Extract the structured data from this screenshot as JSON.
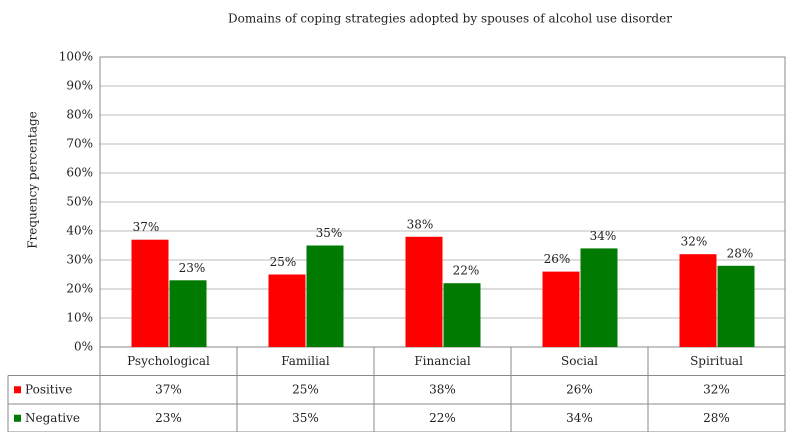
{
  "chart_data": {
    "type": "bar",
    "title": "Domains of coping strategies adopted by spouses of alcohol use disorder",
    "y_label": "Frequency percentage",
    "categories": [
      "Psychological",
      "Familial",
      "Financial",
      "Social",
      "Spiritual"
    ],
    "series": [
      {
        "name": "Positive",
        "color": "#ff0000",
        "values": [
          37,
          25,
          38,
          26,
          32
        ],
        "value_labels": [
          "37%",
          "25%",
          "38%",
          "26%",
          "32%"
        ]
      },
      {
        "name": "Negative",
        "color": "#007a00",
        "values": [
          23,
          35,
          22,
          34,
          28
        ],
        "value_labels": [
          "23%",
          "35%",
          "22%",
          "34%",
          "28%"
        ]
      }
    ],
    "ylim": [
      0,
      100
    ],
    "yticks": [
      {
        "value": 0,
        "label": "0%"
      },
      {
        "value": 10,
        "label": "10%"
      },
      {
        "value": 20,
        "label": "20%"
      },
      {
        "value": 30,
        "label": "30%"
      },
      {
        "value": 40,
        "label": "40%"
      },
      {
        "value": 50,
        "label": "50%"
      },
      {
        "value": 60,
        "label": "60%"
      },
      {
        "value": 70,
        "label": "70%"
      },
      {
        "value": 80,
        "label": "80%"
      },
      {
        "value": 90,
        "label": "90%"
      },
      {
        "value": 100,
        "label": "100%"
      }
    ],
    "grid": true,
    "data_table": true
  }
}
